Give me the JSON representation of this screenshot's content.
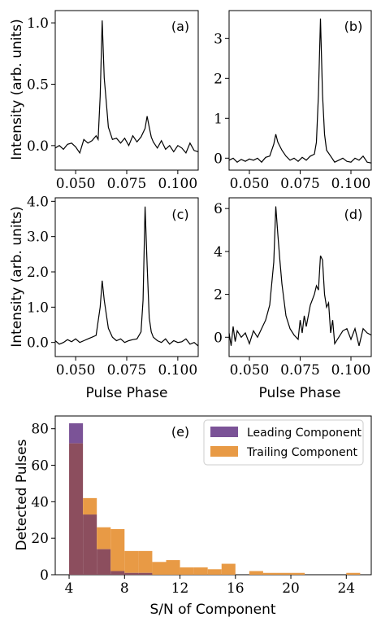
{
  "chart_data": [
    {
      "type": "line",
      "panel_label": "(a)",
      "xlabel": "",
      "ylabel": "Intensity (arb. units)",
      "xlim": [
        0.04,
        0.11
      ],
      "ylim": [
        -0.2,
        1.1
      ],
      "xticks": [
        0.05,
        0.075,
        0.1
      ],
      "xtick_labels": [
        "0.050",
        "0.075",
        "0.100"
      ],
      "yticks": [
        0.0,
        0.5,
        1.0
      ],
      "ytick_labels": [
        "0.0",
        "0.5",
        "1.0"
      ],
      "x": [
        0.04,
        0.042,
        0.044,
        0.046,
        0.048,
        0.05,
        0.052,
        0.054,
        0.056,
        0.058,
        0.06,
        0.061,
        0.062,
        0.063,
        0.064,
        0.065,
        0.066,
        0.068,
        0.07,
        0.072,
        0.074,
        0.076,
        0.078,
        0.08,
        0.082,
        0.084,
        0.085,
        0.086,
        0.087,
        0.088,
        0.09,
        0.092,
        0.094,
        0.096,
        0.098,
        0.1,
        0.102,
        0.104,
        0.106,
        0.108,
        0.11
      ],
      "y": [
        -0.02,
        0.0,
        -0.03,
        0.01,
        0.02,
        -0.01,
        -0.06,
        0.05,
        0.02,
        0.04,
        0.08,
        0.05,
        0.4,
        1.02,
        0.55,
        0.35,
        0.15,
        0.05,
        0.06,
        0.02,
        0.06,
        0.0,
        0.08,
        0.03,
        0.07,
        0.14,
        0.24,
        0.15,
        0.07,
        0.03,
        -0.02,
        0.04,
        -0.03,
        0.0,
        -0.05,
        0.0,
        -0.02,
        -0.06,
        0.02,
        -0.04,
        -0.05
      ]
    },
    {
      "type": "line",
      "panel_label": "(b)",
      "xlabel": "",
      "ylabel": "",
      "xlim": [
        0.04,
        0.11
      ],
      "ylim": [
        -0.3,
        3.7
      ],
      "xticks": [
        0.05,
        0.075,
        0.1
      ],
      "xtick_labels": [
        "0.050",
        "0.075",
        "0.100"
      ],
      "yticks": [
        0,
        1,
        2,
        3
      ],
      "ytick_labels": [
        "0",
        "1",
        "2",
        "3"
      ],
      "x": [
        0.04,
        0.042,
        0.044,
        0.046,
        0.048,
        0.05,
        0.052,
        0.054,
        0.056,
        0.058,
        0.06,
        0.062,
        0.063,
        0.064,
        0.066,
        0.068,
        0.07,
        0.072,
        0.074,
        0.076,
        0.078,
        0.08,
        0.082,
        0.083,
        0.084,
        0.085,
        0.086,
        0.087,
        0.088,
        0.09,
        0.092,
        0.094,
        0.096,
        0.098,
        0.1,
        0.102,
        0.104,
        0.106,
        0.108,
        0.11
      ],
      "y": [
        -0.05,
        0.0,
        -0.1,
        -0.03,
        -0.08,
        -0.02,
        -0.05,
        0.0,
        -0.1,
        0.02,
        0.05,
        0.35,
        0.6,
        0.4,
        0.2,
        0.05,
        -0.05,
        0.0,
        -0.08,
        0.02,
        -0.05,
        0.05,
        0.1,
        0.4,
        1.6,
        3.5,
        1.6,
        0.6,
        0.2,
        0.05,
        -0.1,
        -0.05,
        0.0,
        -0.08,
        -0.1,
        0.0,
        -0.05,
        0.05,
        -0.1,
        -0.12
      ]
    },
    {
      "type": "line",
      "panel_label": "(c)",
      "xlabel": "Pulse Phase",
      "ylabel": "Intensity (arb. units)",
      "xlim": [
        0.04,
        0.11
      ],
      "ylim": [
        -0.4,
        4.1
      ],
      "xticks": [
        0.05,
        0.075,
        0.1
      ],
      "xtick_labels": [
        "0.050",
        "0.075",
        "0.100"
      ],
      "yticks": [
        0,
        1,
        2,
        3,
        4
      ],
      "ytick_labels": [
        "0.0",
        "1.0",
        "2.0",
        "3.0",
        "4.0"
      ],
      "x": [
        0.04,
        0.042,
        0.044,
        0.046,
        0.048,
        0.05,
        0.052,
        0.054,
        0.056,
        0.058,
        0.06,
        0.062,
        0.063,
        0.064,
        0.066,
        0.068,
        0.07,
        0.072,
        0.074,
        0.076,
        0.078,
        0.08,
        0.082,
        0.083,
        0.084,
        0.085,
        0.086,
        0.087,
        0.088,
        0.09,
        0.092,
        0.094,
        0.096,
        0.098,
        0.1,
        0.102,
        0.104,
        0.106,
        0.108,
        0.11
      ],
      "y": [
        0.05,
        -0.05,
        0.0,
        0.08,
        0.02,
        0.1,
        0.0,
        0.05,
        0.1,
        0.15,
        0.2,
        1.0,
        1.75,
        1.2,
        0.4,
        0.15,
        0.05,
        0.1,
        0.0,
        0.05,
        0.08,
        0.1,
        0.3,
        1.2,
        3.85,
        2.2,
        0.7,
        0.3,
        0.15,
        0.05,
        0.0,
        0.1,
        -0.05,
        0.05,
        0.0,
        0.02,
        0.1,
        -0.05,
        0.0,
        -0.1
      ]
    },
    {
      "type": "line",
      "panel_label": "(d)",
      "xlabel": "Pulse Phase",
      "ylabel": "",
      "xlim": [
        0.04,
        0.11
      ],
      "ylim": [
        -0.9,
        6.5
      ],
      "xticks": [
        0.05,
        0.075,
        0.1
      ],
      "xtick_labels": [
        "0.050",
        "0.075",
        "0.100"
      ],
      "yticks": [
        0,
        2,
        4,
        6
      ],
      "ytick_labels": [
        "0",
        "2",
        "4",
        "6"
      ],
      "x": [
        0.04,
        0.041,
        0.042,
        0.043,
        0.044,
        0.046,
        0.048,
        0.05,
        0.052,
        0.054,
        0.056,
        0.058,
        0.06,
        0.062,
        0.063,
        0.064,
        0.065,
        0.066,
        0.068,
        0.07,
        0.072,
        0.074,
        0.075,
        0.076,
        0.077,
        0.078,
        0.08,
        0.082,
        0.083,
        0.084,
        0.085,
        0.086,
        0.087,
        0.088,
        0.089,
        0.09,
        0.091,
        0.092,
        0.094,
        0.096,
        0.098,
        0.1,
        0.102,
        0.104,
        0.106,
        0.108,
        0.11
      ],
      "y": [
        0.2,
        -0.4,
        0.5,
        -0.2,
        0.3,
        0.0,
        0.2,
        -0.3,
        0.3,
        0.0,
        0.4,
        0.8,
        1.5,
        3.5,
        6.1,
        4.8,
        3.6,
        2.5,
        1.0,
        0.4,
        0.1,
        -0.1,
        0.8,
        0.2,
        1.0,
        0.5,
        1.5,
        2.0,
        2.4,
        2.2,
        3.8,
        3.6,
        2.0,
        1.4,
        1.6,
        0.2,
        0.8,
        -0.3,
        0.0,
        0.3,
        0.4,
        -0.1,
        0.4,
        -0.4,
        0.4,
        0.2,
        0.1
      ]
    },
    {
      "type": "bar",
      "panel_label": "(e)",
      "xlabel": "S/N of Component",
      "ylabel": "Detected Pulses",
      "xlim": [
        3.0,
        25.8
      ],
      "ylim": [
        0,
        87
      ],
      "xticks": [
        4,
        8,
        12,
        16,
        20,
        24
      ],
      "xtick_labels": [
        "4",
        "8",
        "12",
        "16",
        "20",
        "24"
      ],
      "yticks": [
        0,
        20,
        40,
        60,
        80
      ],
      "ytick_labels": [
        "0",
        "20",
        "40",
        "60",
        "80"
      ],
      "bin_edges": [
        4,
        5,
        6,
        7,
        8,
        9,
        10,
        11,
        12,
        13,
        14,
        15,
        16,
        17,
        18,
        19,
        20,
        21,
        22,
        23,
        24,
        25
      ],
      "legend_position": "top-right",
      "series": [
        {
          "name": "Leading Component",
          "color": "#7b5397",
          "values": [
            83,
            33,
            14,
            2,
            1,
            1,
            0,
            0,
            0,
            0,
            0,
            0,
            0,
            0,
            0,
            0,
            0,
            0,
            0,
            0,
            0
          ]
        },
        {
          "name": "Trailing Component",
          "color": "#e89a45",
          "values": [
            72,
            42,
            26,
            25,
            13,
            13,
            7,
            8,
            4,
            4,
            3,
            6,
            0,
            2,
            1,
            1,
            1,
            0,
            0,
            0,
            1
          ]
        }
      ],
      "overlap_color": "#8c4e5e"
    }
  ]
}
